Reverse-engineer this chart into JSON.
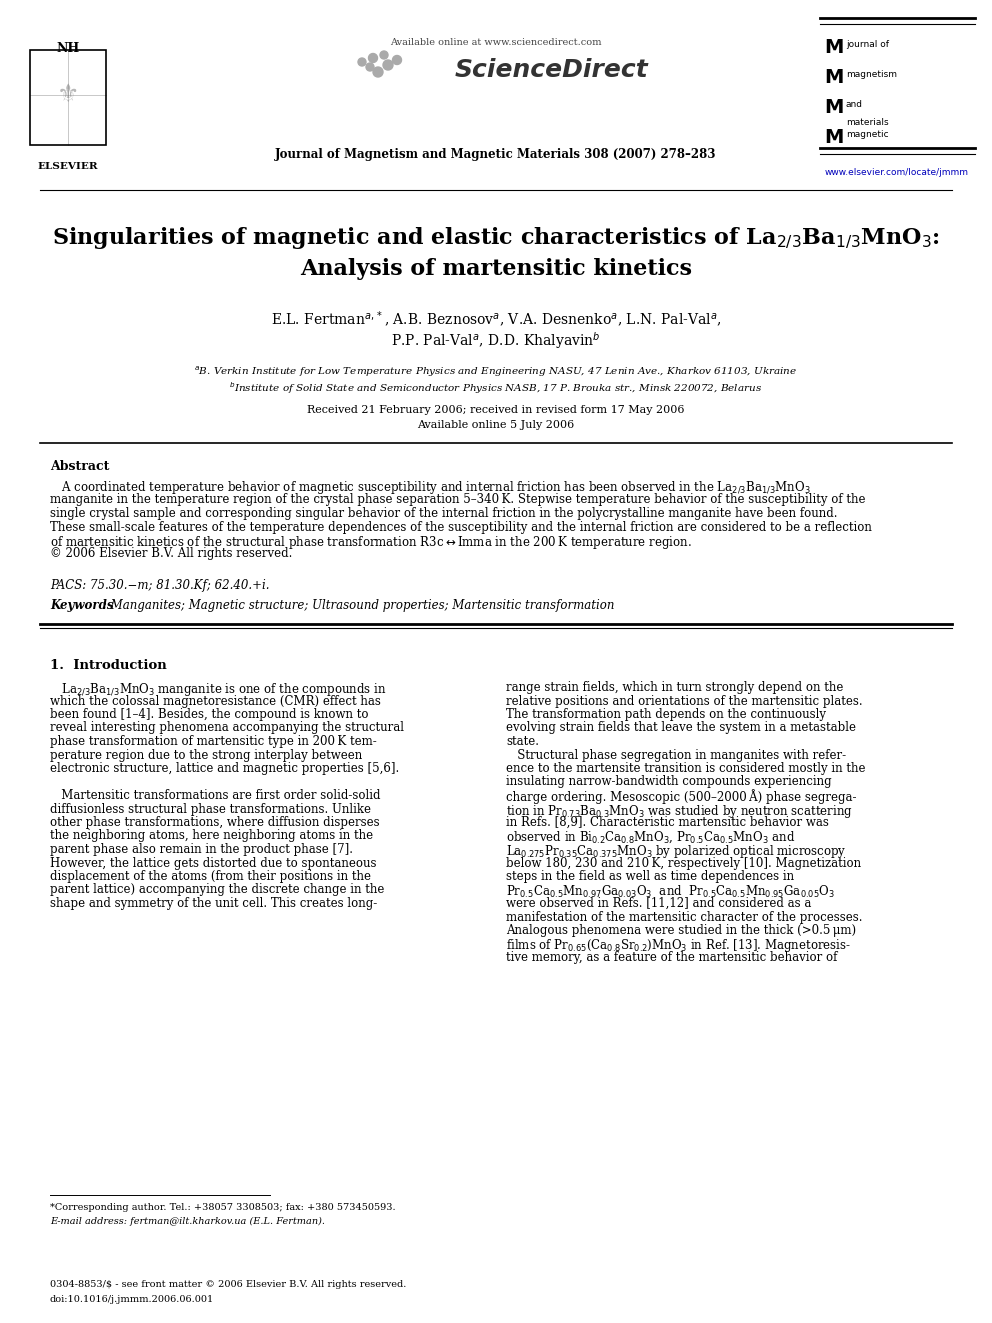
{
  "page_width": 9.92,
  "page_height": 13.23,
  "dpi": 100,
  "bg_color": "#ffffff",
  "available_online": "Available online at www.sciencedirect.com",
  "sciencedirect_text": "ScienceDirect",
  "journal_line": "Journal of Magnetism and Magnetic Materials 308 (2007) 278–283",
  "journal_logo_lines": [
    "journal of",
    "magnetism",
    "and",
    "magnetic",
    "materials"
  ],
  "elsevier_label": "ELSEVIER",
  "elsevier_url": "www.elsevier.com/locate/jmmm",
  "title_line1": "Singularities of magnetic and elastic characteristics of La$_{2/3}$Ba$_{1/3}$MnO$_3$:",
  "title_line2": "Analysis of martensitic kinetics",
  "auth_line1": "E.L. Fertman$^{a,*}$, A.B. Beznosov$^{a}$, V.A. Desnenko$^{a}$, L.N. Pal-Val$^{a}$,",
  "auth_line2": "P.P. Pal-Val$^{a}$, D.D. Khalyavin$^{b}$",
  "affil_a": "$^{a}$B. Verkin Institute for Low Temperature Physics and Engineering NASU, 47 Lenin Ave., Kharkov 61103, Ukraine",
  "affil_b": "$^{b}$Institute of Solid State and Semiconductor Physics NASB, 17 P. Brouka str., Minsk 220072, Belarus",
  "received": "Received 21 February 2006; received in revised form 17 May 2006",
  "avail_online": "Available online 5 July 2006",
  "abstract_title": "Abstract",
  "abstract_lines": [
    "   A coordinated temperature behavior of magnetic susceptibility and internal friction has been observed in the La$_{2/3}$Ba$_{1/3}$MnO$_3$",
    "manganite in the temperature region of the crystal phase separation 5–340 K. Stepwise temperature behavior of the susceptibility of the",
    "single crystal sample and corresponding singular behavior of the internal friction in the polycrystalline manganite have been found.",
    "These small-scale features of the temperature dependences of the susceptibility and the internal friction are considered to be a reflection",
    "of martensitic kinetics of the structural phase transformation R3c$\\leftrightarrow$Imma in the 200 K temperature region.",
    "© 2006 Elsevier B.V. All rights reserved."
  ],
  "pacs": "PACS: 75.30.−m; 81.30.Kf; 62.40.+i.",
  "kw_bold": "Keywords",
  "kw_rest": ": Manganites; Magnetic structure; Ultrasound properties; Martensitic transformation",
  "sec1_title": "1.  Introduction",
  "col1_lines": [
    "   La$_{2/3}$Ba$_{1/3}$MnO$_3$ manganite is one of the compounds in",
    "which the colossal magnetoresistance (CMR) effect has",
    "been found [1–4]. Besides, the compound is known to",
    "reveal interesting phenomena accompanying the structural",
    "phase transformation of martensitic type in 200 K tem-",
    "perature region due to the strong interplay between",
    "electronic structure, lattice and magnetic properties [5,6].",
    "",
    "   Martensitic transformations are first order solid-solid",
    "diffusionless structural phase transformations. Unlike",
    "other phase transformations, where diffusion disperses",
    "the neighboring atoms, here neighboring atoms in the",
    "parent phase also remain in the product phase [7].",
    "However, the lattice gets distorted due to spontaneous",
    "displacement of the atoms (from their positions in the",
    "parent lattice) accompanying the discrete change in the",
    "shape and symmetry of the unit cell. This creates long-"
  ],
  "col2_lines": [
    "range strain fields, which in turn strongly depend on the",
    "relative positions and orientations of the martensitic plates.",
    "The transformation path depends on the continuously",
    "evolving strain fields that leave the system in a metastable",
    "state.",
    "   Structural phase segregation in manganites with refer-",
    "ence to the martensite transition is considered mostly in the",
    "insulating narrow-bandwidth compounds experiencing",
    "charge ordering. Mesoscopic (500–2000 Å) phase segrega-",
    "tion in Pr$_{0.73}$Ba$_{0.3}$MnO$_3$ was studied by neutron scattering",
    "in Refs. [8,9]. Characteristic martensitic behavior was",
    "observed in Bi$_{0.2}$Ca$_{0.8}$MnO$_3$, Pr$_{0.5}$Ca$_{0.5}$MnO$_3$ and",
    "La$_{0.275}$Pr$_{0.35}$Ca$_{0.375}$MnO$_3$ by polarized optical microscopy",
    "below 180, 230 and 210 K, respectively [10]. Magnetization",
    "steps in the field as well as time dependences in",
    "Pr$_{0.5}$Ca$_{0.5}$Mn$_{0.97}$Ga$_{0.03}$O$_3$  and  Pr$_{0.5}$Ca$_{0.5}$Mn$_{0.95}$Ga$_{0.05}$O$_3$",
    "were observed in Refs. [11,12] and considered as a",
    "manifestation of the martensitic character of the processes.",
    "Analogous phenomena were studied in the thick (>0.5 μm)",
    "films of Pr$_{0.65}$(Ca$_{0.8}$Sr$_{0.2}$)MnO$_3$ in Ref. [13]. Magnetoresis-",
    "tive memory, as a feature of the martensitic behavior of"
  ],
  "footnote1": "*Corresponding author. Tel.: +38057 3308503; fax: +380 573450593.",
  "footnote2": "E-mail address: fertman@ilt.kharkov.ua (E.L. Fertman).",
  "footer1": "0304-8853/$ - see front matter © 2006 Elsevier B.V. All rights reserved.",
  "footer2": "doi:10.1016/j.jmmm.2006.06.001"
}
